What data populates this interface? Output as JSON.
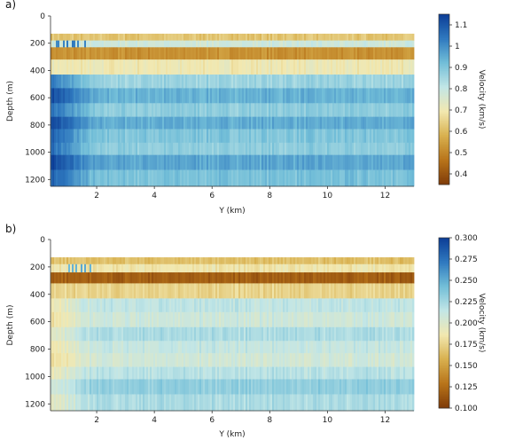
{
  "chart_data": [
    {
      "type": "heatmap",
      "panel_label": "a)",
      "xlabel": "Y (km)",
      "ylabel": "Depth (m)",
      "xlim": [
        0.4,
        13.0
      ],
      "ylim": [
        1250,
        0
      ],
      "x_ticks": [
        2,
        4,
        6,
        8,
        10,
        12
      ],
      "y_ticks": [
        0,
        200,
        400,
        600,
        800,
        1000,
        1200
      ],
      "layer_top_depth": 130,
      "colorbar": {
        "label": "Velocity (km/s)",
        "range": [
          0.35,
          1.15
        ],
        "ticks": [
          0.4,
          0.5,
          0.6,
          0.7,
          0.8,
          0.9,
          1.0,
          1.1
        ],
        "colormap": [
          "#7f3b08",
          "#b8741a",
          "#d8b04e",
          "#f2e8b0",
          "#c2e6e6",
          "#72bed8",
          "#2f79bf",
          "#0c3d96"
        ]
      },
      "depth_layers": [
        {
          "depth_range": [
            130,
            180
          ],
          "velocity_approx": 0.62
        },
        {
          "depth_range": [
            180,
            230
          ],
          "velocity_approx": 0.78
        },
        {
          "depth_range": [
            230,
            320
          ],
          "velocity_approx": 0.52
        },
        {
          "depth_range": [
            320,
            430
          ],
          "velocity_approx": 0.7
        },
        {
          "depth_range": [
            430,
            530
          ],
          "velocity_approx": 0.86
        },
        {
          "depth_range": [
            530,
            640
          ],
          "velocity_approx": 0.94
        },
        {
          "depth_range": [
            640,
            740
          ],
          "velocity_approx": 0.88
        },
        {
          "depth_range": [
            740,
            830
          ],
          "velocity_approx": 0.95
        },
        {
          "depth_range": [
            830,
            930
          ],
          "velocity_approx": 0.9
        },
        {
          "depth_range": [
            930,
            1020
          ],
          "velocity_approx": 0.88
        },
        {
          "depth_range": [
            1020,
            1130
          ],
          "velocity_approx": 0.96
        },
        {
          "depth_range": [
            1130,
            1250
          ],
          "velocity_approx": 0.91
        }
      ]
    },
    {
      "type": "heatmap",
      "panel_label": "b)",
      "xlabel": "Y (km)",
      "ylabel": "Depth (m)",
      "xlim": [
        0.4,
        13.0
      ],
      "ylim": [
        1250,
        0
      ],
      "x_ticks": [
        2,
        4,
        6,
        8,
        10,
        12
      ],
      "y_ticks": [
        0,
        200,
        400,
        600,
        800,
        1000,
        1200
      ],
      "layer_top_depth": 130,
      "colorbar": {
        "label": "Velocity (km/s)",
        "range": [
          0.1,
          0.3
        ],
        "ticks": [
          0.1,
          0.125,
          0.15,
          0.175,
          0.2,
          0.225,
          0.25,
          0.275,
          0.3
        ],
        "tick_labels": [
          "0.100",
          "0.125",
          "0.150",
          "0.175",
          "0.200",
          "0.225",
          "0.250",
          "0.275",
          "0.300"
        ],
        "colormap": [
          "#7f3b08",
          "#b8741a",
          "#d8b04e",
          "#f2e8b0",
          "#c2e6e6",
          "#72bed8",
          "#2f79bf",
          "#0c3d96"
        ]
      },
      "depth_layers": [
        {
          "depth_range": [
            130,
            180
          ],
          "velocity_approx": 0.165
        },
        {
          "depth_range": [
            180,
            240
          ],
          "velocity_approx": 0.185
        },
        {
          "depth_range": [
            240,
            320
          ],
          "velocity_approx": 0.118
        },
        {
          "depth_range": [
            320,
            430
          ],
          "velocity_approx": 0.175
        },
        {
          "depth_range": [
            430,
            530
          ],
          "velocity_approx": 0.215
        },
        {
          "depth_range": [
            530,
            640
          ],
          "velocity_approx": 0.208
        },
        {
          "depth_range": [
            640,
            740
          ],
          "velocity_approx": 0.222
        },
        {
          "depth_range": [
            740,
            830
          ],
          "velocity_approx": 0.212
        },
        {
          "depth_range": [
            830,
            930
          ],
          "velocity_approx": 0.206
        },
        {
          "depth_range": [
            930,
            1020
          ],
          "velocity_approx": 0.218
        },
        {
          "depth_range": [
            1020,
            1130
          ],
          "velocity_approx": 0.232
        },
        {
          "depth_range": [
            1130,
            1250
          ],
          "velocity_approx": 0.222
        }
      ]
    }
  ]
}
